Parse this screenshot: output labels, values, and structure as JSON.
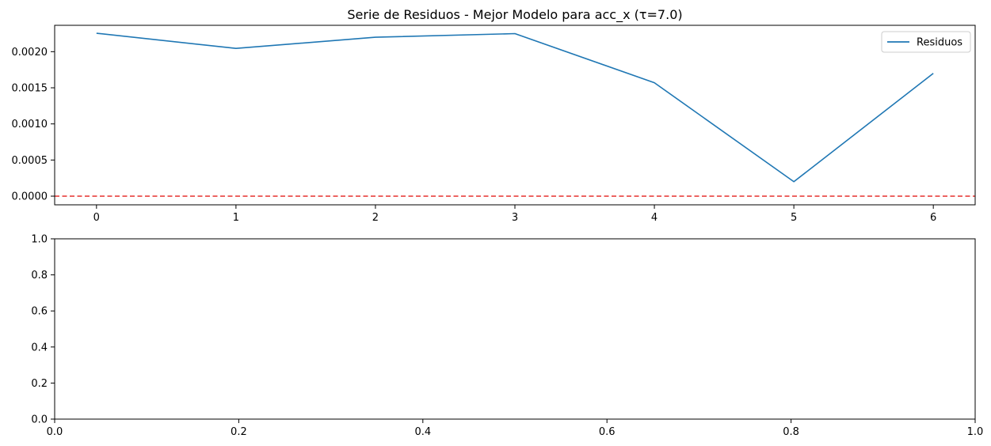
{
  "chart_data": [
    {
      "type": "line",
      "title": "Serie de Residuos - Mejor Modelo para acc_x (τ=7.0)",
      "xlabel": "",
      "ylabel": "",
      "x": [
        0,
        1,
        2,
        3,
        4,
        5,
        6
      ],
      "series": [
        {
          "name": "Residuos",
          "values": [
            0.002255,
            0.002045,
            0.0022,
            0.00225,
            0.00157,
            0.0002,
            0.0017
          ],
          "color": "#1f77b4"
        }
      ],
      "reference_lines": [
        {
          "axis": "y",
          "value": 0.0,
          "style": "dashed",
          "color": "#e8423f"
        }
      ],
      "xlim": [
        -0.3,
        6.3
      ],
      "ylim": [
        -0.00012,
        0.002365
      ],
      "xticks": [
        "0",
        "1",
        "2",
        "3",
        "4",
        "5",
        "6"
      ],
      "yticks": [
        "0.0000",
        "0.0005",
        "0.0010",
        "0.0015",
        "0.0020"
      ],
      "ytick_values": [
        0.0,
        0.0005,
        0.001,
        0.0015,
        0.002
      ],
      "grid": false,
      "legend_position": "upper right"
    },
    {
      "type": "line",
      "title": "",
      "xlabel": "",
      "ylabel": "",
      "series": [],
      "xlim": [
        0.0,
        1.0
      ],
      "ylim": [
        0.0,
        1.0
      ],
      "xticks": [
        "0.0",
        "0.2",
        "0.4",
        "0.6",
        "0.8",
        "1.0"
      ],
      "xtick_values": [
        0.0,
        0.2,
        0.4,
        0.6,
        0.8,
        1.0
      ],
      "yticks": [
        "0.0",
        "0.2",
        "0.4",
        "0.6",
        "0.8",
        "1.0"
      ],
      "ytick_values": [
        0.0,
        0.2,
        0.4,
        0.6,
        0.8,
        1.0
      ],
      "grid": false
    }
  ]
}
